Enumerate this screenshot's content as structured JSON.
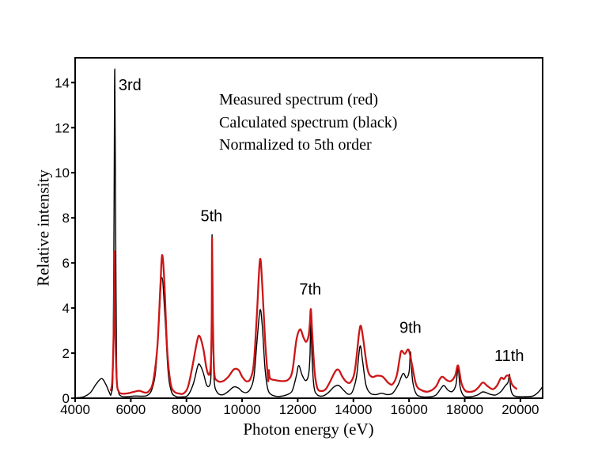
{
  "figure": {
    "legend_lines": [
      "Measured spectrum (red)",
      "Calculated spectrum (black)",
      "Normalized to 5th order"
    ]
  },
  "chart_data": {
    "type": "line",
    "title": "",
    "xlabel": "Photon energy (eV)",
    "ylabel": "Relative intensity",
    "xlim": [
      4000,
      20800
    ],
    "ylim": [
      0,
      15.1
    ],
    "x_ticks": [
      4000,
      6000,
      8000,
      10000,
      12000,
      14000,
      16000,
      18000,
      20000
    ],
    "y_ticks": [
      0,
      2,
      4,
      6,
      8,
      10,
      12,
      14
    ],
    "grid": false,
    "legend_position": "inside-top-center",
    "axis_color": "#000000",
    "annotations": [
      {
        "text": "3rd",
        "x": 5560,
        "y": 13.9,
        "anchor": "start"
      },
      {
        "text": "5th",
        "x": 8900,
        "y": 8.1,
        "anchor": "middle"
      },
      {
        "text": "7th",
        "x": 12450,
        "y": 4.85,
        "anchor": "middle"
      },
      {
        "text": "9th",
        "x": 16050,
        "y": 3.15,
        "anchor": "middle"
      },
      {
        "text": "11th",
        "x": 19600,
        "y": 1.9,
        "anchor": "middle"
      }
    ],
    "series": [
      {
        "name": "Calculated spectrum",
        "color": "#000000",
        "width": 1.4,
        "points": [
          [
            4050,
            0.02
          ],
          [
            4300,
            0.06
          ],
          [
            4550,
            0.25
          ],
          [
            4750,
            0.62
          ],
          [
            4950,
            0.87
          ],
          [
            5100,
            0.62
          ],
          [
            5220,
            0.28
          ],
          [
            5300,
            0.22
          ],
          [
            5365,
            1.5
          ],
          [
            5400,
            9
          ],
          [
            5425,
            14.6
          ],
          [
            5450,
            9
          ],
          [
            5490,
            1.5
          ],
          [
            5550,
            0.35
          ],
          [
            5650,
            0.1
          ],
          [
            5900,
            0.07
          ],
          [
            6150,
            0.1
          ],
          [
            6400,
            0.09
          ],
          [
            6600,
            0.13
          ],
          [
            6760,
            0.4
          ],
          [
            6900,
            1.3
          ],
          [
            7020,
            3.6
          ],
          [
            7120,
            5.35
          ],
          [
            7230,
            3.6
          ],
          [
            7340,
            1.2
          ],
          [
            7460,
            0.3
          ],
          [
            7620,
            0.08
          ],
          [
            7860,
            0.06
          ],
          [
            8060,
            0.14
          ],
          [
            8250,
            0.65
          ],
          [
            8400,
            1.4
          ],
          [
            8470,
            1.5
          ],
          [
            8600,
            1.15
          ],
          [
            8720,
            0.6
          ],
          [
            8820,
            0.55
          ],
          [
            8880,
            1.0
          ],
          [
            8906,
            3.0
          ],
          [
            8922,
            7.25
          ],
          [
            8948,
            3.0
          ],
          [
            8995,
            0.8
          ],
          [
            9110,
            0.25
          ],
          [
            9300,
            0.15
          ],
          [
            9500,
            0.3
          ],
          [
            9700,
            0.5
          ],
          [
            9870,
            0.45
          ],
          [
            10000,
            0.3
          ],
          [
            10150,
            0.25
          ],
          [
            10300,
            0.42
          ],
          [
            10430,
            1.0
          ],
          [
            10540,
            2.6
          ],
          [
            10645,
            3.92
          ],
          [
            10725,
            3.2
          ],
          [
            10825,
            1.3
          ],
          [
            10925,
            0.4
          ],
          [
            11060,
            0.15
          ],
          [
            11260,
            0.08
          ],
          [
            11460,
            0.1
          ],
          [
            11660,
            0.18
          ],
          [
            11810,
            0.35
          ],
          [
            11950,
            1.0
          ],
          [
            12035,
            1.45
          ],
          [
            12150,
            1.05
          ],
          [
            12280,
            0.78
          ],
          [
            12390,
            1.05
          ],
          [
            12440,
            1.9
          ],
          [
            12472,
            3.68
          ],
          [
            12510,
            1.9
          ],
          [
            12585,
            0.5
          ],
          [
            12705,
            0.15
          ],
          [
            12900,
            0.1
          ],
          [
            13100,
            0.25
          ],
          [
            13300,
            0.5
          ],
          [
            13470,
            0.57
          ],
          [
            13650,
            0.35
          ],
          [
            13810,
            0.18
          ],
          [
            13960,
            0.28
          ],
          [
            14110,
            0.95
          ],
          [
            14235,
            2.3
          ],
          [
            14325,
            1.7
          ],
          [
            14450,
            0.6
          ],
          [
            14610,
            0.22
          ],
          [
            14810,
            0.16
          ],
          [
            15010,
            0.22
          ],
          [
            15210,
            0.16
          ],
          [
            15410,
            0.22
          ],
          [
            15610,
            0.6
          ],
          [
            15785,
            1.1
          ],
          [
            15905,
            0.9
          ],
          [
            16005,
            1.2
          ],
          [
            16052,
            2.05
          ],
          [
            16125,
            0.8
          ],
          [
            16255,
            0.2
          ],
          [
            16455,
            0.07
          ],
          [
            16705,
            0.06
          ],
          [
            16955,
            0.13
          ],
          [
            17155,
            0.45
          ],
          [
            17255,
            0.56
          ],
          [
            17405,
            0.35
          ],
          [
            17555,
            0.3
          ],
          [
            17685,
            0.6
          ],
          [
            17762,
            1.33
          ],
          [
            17835,
            0.5
          ],
          [
            17955,
            0.12
          ],
          [
            18155,
            0.06
          ],
          [
            18455,
            0.14
          ],
          [
            18655,
            0.28
          ],
          [
            18905,
            0.18
          ],
          [
            19105,
            0.14
          ],
          [
            19305,
            0.3
          ],
          [
            19455,
            0.55
          ],
          [
            19555,
            0.7
          ],
          [
            19612,
            1.05
          ],
          [
            19655,
            0.4
          ],
          [
            19755,
            0.12
          ],
          [
            19955,
            0.07
          ],
          [
            20205,
            0.07
          ],
          [
            20455,
            0.1
          ],
          [
            20655,
            0.28
          ],
          [
            20790,
            0.5
          ]
        ]
      },
      {
        "name": "Measured spectrum",
        "color": "#cc1616",
        "width": 2.3,
        "points": [
          [
            5285,
            0.35
          ],
          [
            5340,
            0.9
          ],
          [
            5392,
            3.5
          ],
          [
            5418,
            6.5
          ],
          [
            5445,
            3.0
          ],
          [
            5495,
            0.8
          ],
          [
            5565,
            0.3
          ],
          [
            5705,
            0.2
          ],
          [
            5905,
            0.22
          ],
          [
            6105,
            0.28
          ],
          [
            6305,
            0.33
          ],
          [
            6505,
            0.25
          ],
          [
            6655,
            0.32
          ],
          [
            6805,
            0.75
          ],
          [
            6955,
            2.3
          ],
          [
            7065,
            5.0
          ],
          [
            7125,
            6.35
          ],
          [
            7205,
            5.2
          ],
          [
            7305,
            2.2
          ],
          [
            7425,
            0.7
          ],
          [
            7555,
            0.3
          ],
          [
            7755,
            0.2
          ],
          [
            7905,
            0.22
          ],
          [
            8055,
            0.5
          ],
          [
            8205,
            1.35
          ],
          [
            8385,
            2.55
          ],
          [
            8475,
            2.75
          ],
          [
            8605,
            2.2
          ],
          [
            8725,
            1.3
          ],
          [
            8825,
            1.05
          ],
          [
            8882,
            1.7
          ],
          [
            8908,
            3.6
          ],
          [
            8922,
            7.1
          ],
          [
            8950,
            3.6
          ],
          [
            8998,
            1.2
          ],
          [
            9105,
            0.78
          ],
          [
            9305,
            0.75
          ],
          [
            9505,
            0.95
          ],
          [
            9705,
            1.28
          ],
          [
            9875,
            1.25
          ],
          [
            10005,
            0.95
          ],
          [
            10155,
            0.75
          ],
          [
            10305,
            0.88
          ],
          [
            10425,
            1.6
          ],
          [
            10535,
            3.8
          ],
          [
            10642,
            6.15
          ],
          [
            10725,
            5.0
          ],
          [
            10825,
            2.6
          ],
          [
            10905,
            1.25
          ],
          [
            10938,
            0.75
          ],
          [
            10958,
            1.25
          ],
          [
            11005,
            0.88
          ],
          [
            11205,
            0.8
          ],
          [
            11455,
            0.76
          ],
          [
            11655,
            0.82
          ],
          [
            11805,
            1.2
          ],
          [
            11955,
            2.6
          ],
          [
            12085,
            3.05
          ],
          [
            12205,
            2.7
          ],
          [
            12300,
            2.5
          ],
          [
            12385,
            2.75
          ],
          [
            12435,
            3.3
          ],
          [
            12472,
            3.95
          ],
          [
            12520,
            2.9
          ],
          [
            12605,
            1.2
          ],
          [
            12705,
            0.45
          ],
          [
            12855,
            0.32
          ],
          [
            13005,
            0.4
          ],
          [
            13155,
            0.72
          ],
          [
            13355,
            1.2
          ],
          [
            13475,
            1.25
          ],
          [
            13605,
            0.95
          ],
          [
            13755,
            0.72
          ],
          [
            13905,
            0.72
          ],
          [
            14055,
            1.25
          ],
          [
            14205,
            2.9
          ],
          [
            14272,
            3.2
          ],
          [
            14355,
            2.6
          ],
          [
            14505,
            1.3
          ],
          [
            14655,
            0.95
          ],
          [
            14855,
            1.0
          ],
          [
            15055,
            0.95
          ],
          [
            15255,
            0.68
          ],
          [
            15405,
            0.62
          ],
          [
            15555,
            1.0
          ],
          [
            15660,
            1.75
          ],
          [
            15722,
            2.1
          ],
          [
            15850,
            1.97
          ],
          [
            15982,
            2.15
          ],
          [
            16105,
            1.5
          ],
          [
            16255,
            0.6
          ],
          [
            16455,
            0.35
          ],
          [
            16705,
            0.3
          ],
          [
            16955,
            0.5
          ],
          [
            17105,
            0.85
          ],
          [
            17205,
            0.95
          ],
          [
            17355,
            0.8
          ],
          [
            17505,
            0.76
          ],
          [
            17655,
            1.0
          ],
          [
            17762,
            1.45
          ],
          [
            17875,
            0.7
          ],
          [
            18005,
            0.35
          ],
          [
            18155,
            0.28
          ],
          [
            18355,
            0.33
          ],
          [
            18505,
            0.5
          ],
          [
            18655,
            0.7
          ],
          [
            18805,
            0.55
          ],
          [
            19005,
            0.4
          ],
          [
            19155,
            0.55
          ],
          [
            19305,
            0.9
          ],
          [
            19405,
            0.85
          ],
          [
            19505,
            1.0
          ],
          [
            19605,
            0.95
          ],
          [
            19705,
            0.6
          ],
          [
            19855,
            0.42
          ]
        ]
      }
    ]
  }
}
